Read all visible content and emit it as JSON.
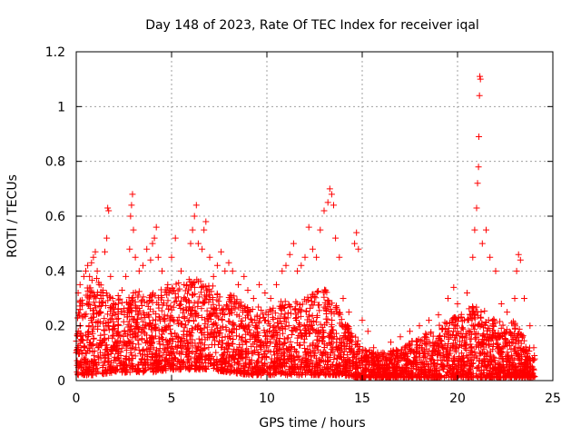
{
  "chart_data": {
    "type": "scatter",
    "title": "Day 148 of 2023, Rate Of TEC Index for receiver iqal",
    "xlabel": "GPS time / hours",
    "ylabel": "ROTI / TECUs",
    "xlim": [
      0,
      25
    ],
    "ylim": [
      0,
      1.2
    ],
    "x_ticks": [
      "0",
      "5",
      "10",
      "15",
      "20",
      "25"
    ],
    "y_ticks": [
      "0",
      "0.2",
      "0.4",
      "0.6",
      "0.8",
      "1",
      "1.2"
    ],
    "grid": true,
    "marker": "+",
    "color": "#ff0000",
    "series": [
      {
        "points": [
          [
            0.1,
            0.32
          ],
          [
            0.2,
            0.35
          ],
          [
            0.3,
            0.28
          ],
          [
            0.4,
            0.38
          ],
          [
            0.5,
            0.4
          ],
          [
            0.6,
            0.42
          ],
          [
            0.7,
            0.38
          ],
          [
            0.8,
            0.43
          ],
          [
            0.9,
            0.45
          ],
          [
            1.0,
            0.47
          ],
          [
            1.1,
            0.4
          ],
          [
            1.2,
            0.35
          ],
          [
            1.3,
            0.3
          ],
          [
            1.4,
            0.33
          ],
          [
            1.5,
            0.47
          ],
          [
            1.6,
            0.52
          ],
          [
            1.65,
            0.63
          ],
          [
            1.7,
            0.62
          ],
          [
            1.8,
            0.38
          ],
          [
            1.9,
            0.3
          ],
          [
            2.0,
            0.26
          ],
          [
            2.2,
            0.31
          ],
          [
            2.4,
            0.33
          ],
          [
            2.6,
            0.38
          ],
          [
            2.8,
            0.48
          ],
          [
            2.85,
            0.6
          ],
          [
            2.9,
            0.64
          ],
          [
            2.95,
            0.68
          ],
          [
            3.0,
            0.55
          ],
          [
            3.1,
            0.45
          ],
          [
            3.3,
            0.4
          ],
          [
            3.5,
            0.42
          ],
          [
            3.7,
            0.48
          ],
          [
            3.9,
            0.44
          ],
          [
            4.0,
            0.5
          ],
          [
            4.1,
            0.52
          ],
          [
            4.2,
            0.56
          ],
          [
            4.3,
            0.45
          ],
          [
            4.5,
            0.4
          ],
          [
            4.8,
            0.35
          ],
          [
            5.0,
            0.45
          ],
          [
            5.2,
            0.52
          ],
          [
            5.5,
            0.4
          ],
          [
            5.8,
            0.35
          ],
          [
            6.0,
            0.5
          ],
          [
            6.1,
            0.55
          ],
          [
            6.2,
            0.6
          ],
          [
            6.3,
            0.64
          ],
          [
            6.4,
            0.5
          ],
          [
            6.6,
            0.48
          ],
          [
            6.7,
            0.55
          ],
          [
            6.8,
            0.58
          ],
          [
            7.0,
            0.45
          ],
          [
            7.2,
            0.38
          ],
          [
            7.4,
            0.42
          ],
          [
            7.6,
            0.47
          ],
          [
            7.8,
            0.4
          ],
          [
            8.0,
            0.43
          ],
          [
            8.2,
            0.4
          ],
          [
            8.5,
            0.35
          ],
          [
            8.8,
            0.38
          ],
          [
            9.0,
            0.33
          ],
          [
            9.3,
            0.3
          ],
          [
            9.6,
            0.35
          ],
          [
            9.9,
            0.32
          ],
          [
            10.2,
            0.3
          ],
          [
            10.5,
            0.35
          ],
          [
            10.8,
            0.4
          ],
          [
            11.0,
            0.42
          ],
          [
            11.2,
            0.46
          ],
          [
            11.4,
            0.5
          ],
          [
            11.6,
            0.4
          ],
          [
            11.8,
            0.42
          ],
          [
            12.0,
            0.45
          ],
          [
            12.2,
            0.56
          ],
          [
            12.4,
            0.48
          ],
          [
            12.6,
            0.45
          ],
          [
            12.8,
            0.55
          ],
          [
            13.0,
            0.62
          ],
          [
            13.2,
            0.65
          ],
          [
            13.3,
            0.7
          ],
          [
            13.4,
            0.68
          ],
          [
            13.5,
            0.64
          ],
          [
            13.6,
            0.52
          ],
          [
            13.8,
            0.45
          ],
          [
            14.0,
            0.3
          ],
          [
            14.3,
            0.25
          ],
          [
            14.6,
            0.5
          ],
          [
            14.7,
            0.54
          ],
          [
            14.8,
            0.48
          ],
          [
            15.0,
            0.22
          ],
          [
            15.3,
            0.18
          ],
          [
            15.6,
            0.12
          ],
          [
            16.0,
            0.1
          ],
          [
            16.5,
            0.14
          ],
          [
            17.0,
            0.16
          ],
          [
            17.5,
            0.18
          ],
          [
            18.0,
            0.2
          ],
          [
            18.5,
            0.22
          ],
          [
            19.0,
            0.24
          ],
          [
            19.5,
            0.3
          ],
          [
            19.8,
            0.34
          ],
          [
            20.0,
            0.28
          ],
          [
            20.5,
            0.32
          ],
          [
            20.8,
            0.45
          ],
          [
            20.9,
            0.55
          ],
          [
            21.0,
            0.63
          ],
          [
            21.05,
            0.72
          ],
          [
            21.1,
            0.78
          ],
          [
            21.12,
            0.89
          ],
          [
            21.15,
            1.04
          ],
          [
            21.17,
            1.11
          ],
          [
            21.2,
            1.1
          ],
          [
            21.3,
            0.5
          ],
          [
            21.5,
            0.55
          ],
          [
            21.7,
            0.45
          ],
          [
            22.0,
            0.4
          ],
          [
            22.3,
            0.28
          ],
          [
            22.6,
            0.25
          ],
          [
            23.0,
            0.3
          ],
          [
            23.1,
            0.4
          ],
          [
            23.2,
            0.46
          ],
          [
            23.3,
            0.44
          ],
          [
            23.5,
            0.3
          ],
          [
            23.8,
            0.2
          ],
          [
            24.0,
            0.12
          ]
        ]
      }
    ],
    "dense_cloud": {
      "description_free": true,
      "base_upper_by_hour": [
        [
          0,
          0.3
        ],
        [
          1,
          0.38
        ],
        [
          2,
          0.3
        ],
        [
          3,
          0.33
        ],
        [
          4,
          0.32
        ],
        [
          5,
          0.35
        ],
        [
          6,
          0.38
        ],
        [
          7,
          0.35
        ],
        [
          8,
          0.32
        ],
        [
          9,
          0.28
        ],
        [
          10,
          0.26
        ],
        [
          11,
          0.3
        ],
        [
          12,
          0.3
        ],
        [
          13,
          0.34
        ],
        [
          14,
          0.24
        ],
        [
          15,
          0.12
        ],
        [
          16,
          0.1
        ],
        [
          17,
          0.12
        ],
        [
          18,
          0.16
        ],
        [
          19,
          0.2
        ],
        [
          20,
          0.24
        ],
        [
          21,
          0.28
        ],
        [
          22,
          0.22
        ],
        [
          23,
          0.22
        ],
        [
          24,
          0.1
        ]
      ],
      "base_lower_by_hour": [
        [
          0,
          0.02
        ],
        [
          1,
          0.02
        ],
        [
          2,
          0.03
        ],
        [
          3,
          0.03
        ],
        [
          4,
          0.03
        ],
        [
          5,
          0.04
        ],
        [
          6,
          0.04
        ],
        [
          7,
          0.04
        ],
        [
          8,
          0.03
        ],
        [
          9,
          0.02
        ],
        [
          10,
          0.02
        ],
        [
          11,
          0.02
        ],
        [
          12,
          0.02
        ],
        [
          13,
          0.02
        ],
        [
          14,
          0.02
        ],
        [
          15,
          0.01
        ],
        [
          16,
          0.01
        ],
        [
          17,
          0.01
        ],
        [
          18,
          0.01
        ],
        [
          19,
          0.01
        ],
        [
          20,
          0.01
        ],
        [
          21,
          0.01
        ],
        [
          22,
          0.01
        ],
        [
          23,
          0.01
        ],
        [
          24,
          0.01
        ]
      ]
    }
  }
}
